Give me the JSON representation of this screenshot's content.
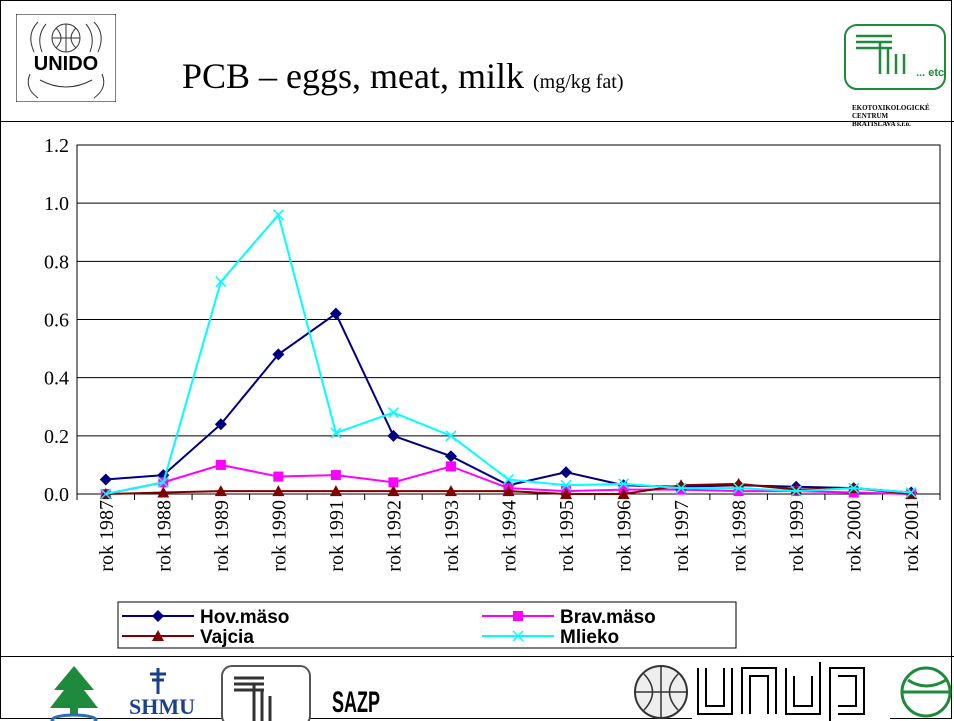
{
  "header": {
    "title_main": "PCB – eggs, meat, milk",
    "title_unit": "(mg/kg fat)",
    "left_logo_text": "UNIDO",
    "right_logo_text": "... etc",
    "right_logo_caption": [
      "EKOTOXIKOLOGICKÉ",
      "CENTRUM",
      "BRATISLAVA s.r.o."
    ]
  },
  "footer": {
    "logos": [
      "tree-logo",
      "SHMU",
      "etc-logo",
      "SAZP",
      "un-emblem",
      "undp",
      "globe-logo"
    ],
    "shmu_text": "SHMU",
    "sazp_text": "SAZP",
    "undp_text": "undp"
  },
  "colors": {
    "hov": "#000080",
    "brav": "#ff00ff",
    "vajcia": "#800000",
    "mlieko": "#00ffff",
    "logo_green": "#1e8a3c"
  },
  "chart_data": {
    "type": "line",
    "categories": [
      "rok 1987",
      "rok 1988",
      "rok 1989",
      "rok 1990",
      "rok 1991",
      "rok 1992",
      "rok 1993",
      "rok 1994",
      "rok 1995",
      "rok 1996",
      "rok 1997",
      "rok 1998",
      "rok 1999",
      "rok 2000",
      "rok 2001"
    ],
    "ylim": [
      0,
      1.2
    ],
    "yticks": [
      "0.0",
      "0.2",
      "0.4",
      "0.6",
      "0.8",
      "1.0",
      "1.2"
    ],
    "grid": true,
    "legend_position": "bottom",
    "series": [
      {
        "name": "Hov.mäso",
        "color": "#000080",
        "marker": "diamond",
        "values": [
          0.05,
          0.065,
          0.24,
          0.48,
          0.62,
          0.2,
          0.13,
          0.03,
          0.075,
          0.03,
          0.025,
          0.03,
          0.025,
          0.02,
          0.005
        ]
      },
      {
        "name": "Brav.mäso",
        "color": "#ff00ff",
        "marker": "square",
        "values": [
          0.0,
          0.04,
          0.1,
          0.06,
          0.065,
          0.04,
          0.095,
          0.02,
          0.01,
          0.015,
          0.015,
          0.01,
          0.01,
          0.005,
          0.0
        ]
      },
      {
        "name": "Vajcia",
        "color": "#800000",
        "marker": "triangle",
        "values": [
          0.0,
          0.005,
          0.01,
          0.01,
          0.01,
          0.01,
          0.01,
          0.01,
          0.0,
          0.0,
          0.03,
          0.035,
          0.015,
          0.02,
          0.0
        ]
      },
      {
        "name": "Mlieko",
        "color": "#00ffff",
        "marker": "x",
        "values": [
          0.0,
          0.04,
          0.73,
          0.96,
          0.21,
          0.28,
          0.2,
          0.05,
          0.03,
          0.035,
          0.02,
          0.02,
          0.01,
          0.02,
          0.005
        ]
      }
    ]
  }
}
